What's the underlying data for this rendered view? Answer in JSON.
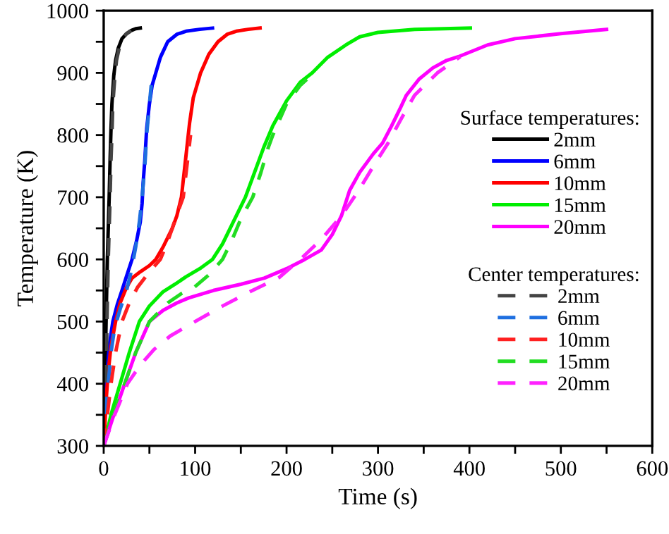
{
  "chart_data": {
    "type": "line",
    "xlabel": "Time (s)",
    "ylabel": "Temperature (K)",
    "xlim": [
      0,
      600
    ],
    "ylim": [
      300,
      1000
    ],
    "xticks": [
      0,
      {
        "value": 50,
        "label": null
      },
      100,
      {
        "value": 150,
        "label": null
      },
      200,
      {
        "value": 250,
        "label": null
      },
      300,
      {
        "value": 350,
        "label": null
      },
      400,
      {
        "value": 450,
        "label": null
      },
      500,
      {
        "value": 550,
        "label": null
      },
      600
    ],
    "yticks": [
      300,
      {
        "value": 350,
        "label": null
      },
      400,
      {
        "value": 450,
        "label": null
      },
      500,
      {
        "value": 550,
        "label": null
      },
      600,
      {
        "value": 650,
        "label": null
      },
      700,
      {
        "value": 750,
        "label": null
      },
      800,
      {
        "value": 850,
        "label": null
      },
      900,
      {
        "value": 950,
        "label": null
      },
      1000
    ],
    "grid": false,
    "legend": "right",
    "marker": "none",
    "legend_title": "Surface temperatures:",
    "annotations": [
      "Center temperatures:"
    ],
    "series": [
      {
        "name": "2mm",
        "color": "#000000",
        "line_style": "solid",
        "x": [
          0,
          1,
          2,
          3,
          4,
          5,
          6,
          7,
          8,
          9,
          11,
          13,
          16,
          20,
          25,
          30,
          35,
          40
        ],
        "values": [
          300,
          380,
          450,
          530,
          600,
          650,
          700,
          760,
          810,
          850,
          895,
          920,
          940,
          955,
          963,
          968,
          971,
          972
        ]
      },
      {
        "name": "6mm",
        "color": "#0000ff",
        "line_style": "solid",
        "x": [
          0,
          1,
          3,
          6,
          10,
          15,
          20,
          25,
          31,
          36,
          40,
          42,
          43,
          45,
          47,
          50,
          53,
          57,
          62,
          70,
          80,
          90,
          105,
          119
        ],
        "values": [
          300,
          350,
          400,
          460,
          500,
          528,
          550,
          573,
          600,
          630,
          660,
          690,
          720,
          760,
          810,
          850,
          880,
          900,
          925,
          950,
          962,
          967,
          970,
          972
        ]
      },
      {
        "name": "10mm",
        "color": "#ff0000",
        "line_style": "solid",
        "x": [
          0,
          3,
          5,
          8,
          13,
          18,
          25,
          31,
          40,
          50,
          57,
          65,
          75,
          80,
          85,
          88,
          91,
          94,
          98,
          106,
          115,
          125,
          135,
          145,
          158,
          171
        ],
        "values": [
          300,
          380,
          420,
          460,
          500,
          530,
          555,
          570,
          580,
          590,
          600,
          620,
          650,
          670,
          700,
          740,
          780,
          820,
          860,
          900,
          930,
          950,
          962,
          967,
          970,
          972
        ]
      },
      {
        "name": "15mm",
        "color": "#00ee00",
        "line_style": "solid",
        "x": [
          0,
          8,
          18,
          28,
          39,
          50,
          65,
          78,
          90,
          105,
          119,
          130,
          140,
          155,
          165,
          175,
          185,
          200,
          215,
          228,
          245,
          265,
          280,
          300,
          340,
          401
        ],
        "values": [
          300,
          350,
          400,
          450,
          500,
          525,
          548,
          560,
          572,
          585,
          600,
          625,
          655,
          700,
          740,
          780,
          815,
          855,
          885,
          900,
          925,
          945,
          958,
          965,
          970,
          972
        ]
      },
      {
        "name": "20mm",
        "color": "#ff00ff",
        "line_style": "solid",
        "x": [
          0,
          10,
          23,
          35,
          50,
          65,
          80,
          93,
          120,
          150,
          176,
          200,
          220,
          238,
          250,
          260,
          269,
          280,
          295,
          305,
          315,
          325,
          331,
          345,
          360,
          375,
          388,
          420,
          450,
          500,
          550
        ],
        "values": [
          300,
          345,
          400,
          450,
          500,
          518,
          530,
          538,
          550,
          560,
          570,
          585,
          600,
          615,
          640,
          670,
          711,
          740,
          770,
          787,
          815,
          845,
          864,
          890,
          908,
          920,
          926,
          945,
          955,
          963,
          970
        ]
      },
      {
        "name": "2mm",
        "color": "#444444",
        "line_style": "dashed",
        "x": [
          0,
          2,
          3,
          4,
          5,
          6,
          7,
          8,
          9,
          10,
          12,
          14,
          17,
          20,
          25,
          30
        ],
        "values": [
          300,
          400,
          450,
          530,
          600,
          650,
          700,
          760,
          800,
          850,
          890,
          920,
          940,
          955,
          963,
          968
        ]
      },
      {
        "name": "6mm",
        "color": "#1e6fe0",
        "line_style": "dashed",
        "x": [
          0,
          2,
          5,
          8,
          12,
          18,
          25,
          30,
          35,
          39,
          42,
          45,
          47,
          50,
          52
        ],
        "values": [
          300,
          350,
          400,
          450,
          490,
          520,
          550,
          580,
          620,
          660,
          700,
          750,
          800,
          850,
          880
        ]
      },
      {
        "name": "10mm",
        "color": "#ff2020",
        "line_style": "dashed",
        "x": [
          0,
          4,
          8,
          13,
          20,
          28,
          37,
          50,
          62,
          69,
          75,
          82,
          87,
          91,
          95
        ],
        "values": [
          300,
          350,
          400,
          450,
          500,
          530,
          555,
          580,
          600,
          625,
          650,
          680,
          700,
          750,
          800
        ]
      },
      {
        "name": "15mm",
        "color": "#22dd22",
        "line_style": "dashed",
        "x": [
          0,
          11,
          23,
          35,
          50,
          70,
          85,
          99,
          115,
          130,
          140,
          150,
          163,
          172,
          180,
          185,
          200,
          215,
          230
        ],
        "values": [
          300,
          350,
          400,
          450,
          500,
          530,
          545,
          555,
          575,
          600,
          630,
          665,
          700,
          740,
          780,
          800,
          850,
          880,
          900
        ]
      },
      {
        "name": "20mm",
        "color": "#ff22ff",
        "line_style": "dashed",
        "x": [
          0,
          12,
          26,
          40,
          55,
          73,
          100,
          130,
          160,
          192,
          215,
          238,
          260,
          279,
          295,
          311,
          325,
          340,
          365,
          390
        ],
        "values": [
          300,
          350,
          400,
          430,
          455,
          477,
          500,
          525,
          548,
          571,
          600,
          632,
          670,
          711,
          750,
          787,
          825,
          864,
          900,
          926
        ]
      }
    ]
  }
}
